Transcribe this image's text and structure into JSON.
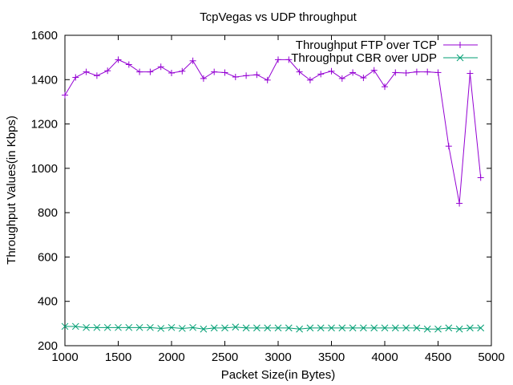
{
  "chart_data": {
    "type": "line",
    "title": "TcpVegas vs UDP throughput",
    "xlabel": "Packet Size(in Bytes)",
    "ylabel": "Throughput Values(in Kbps)",
    "xlim": [
      1000,
      5000
    ],
    "ylim": [
      200,
      1600
    ],
    "xticks": [
      1000,
      1500,
      2000,
      2500,
      3000,
      3500,
      4000,
      4500,
      5000
    ],
    "yticks": [
      200,
      400,
      600,
      800,
      1000,
      1200,
      1400,
      1600
    ],
    "grid": false,
    "legend_position": "top-right",
    "x": [
      1000,
      1100,
      1200,
      1300,
      1400,
      1500,
      1600,
      1700,
      1800,
      1900,
      2000,
      2100,
      2200,
      2300,
      2400,
      2500,
      2600,
      2700,
      2800,
      2900,
      3000,
      3100,
      3200,
      3300,
      3400,
      3500,
      3600,
      3700,
      3800,
      3900,
      4000,
      4100,
      4200,
      4300,
      4400,
      4500,
      4600,
      4700,
      4800,
      4900
    ],
    "series": [
      {
        "name": "Throughput FTP over TCP",
        "color": "#9400d3",
        "marker": "plus",
        "values": [
          1330,
          1410,
          1435,
          1418,
          1440,
          1490,
          1468,
          1435,
          1435,
          1458,
          1430,
          1438,
          1485,
          1405,
          1435,
          1432,
          1412,
          1418,
          1422,
          1398,
          1490,
          1490,
          1435,
          1398,
          1425,
          1438,
          1405,
          1432,
          1408,
          1442,
          1368,
          1432,
          1430,
          1435,
          1435,
          1432,
          1100,
          842,
          1428,
          958
        ]
      },
      {
        "name": "Throughput CBR over UDP",
        "color": "#009e73",
        "marker": "x",
        "values": [
          287,
          287,
          282,
          282,
          282,
          282,
          282,
          282,
          282,
          278,
          282,
          278,
          282,
          275,
          280,
          280,
          284,
          280,
          280,
          280,
          280,
          280,
          275,
          280,
          280,
          280,
          280,
          280,
          280,
          280,
          280,
          280,
          280,
          280,
          275,
          275,
          280,
          275,
          280,
          280
        ]
      }
    ]
  }
}
